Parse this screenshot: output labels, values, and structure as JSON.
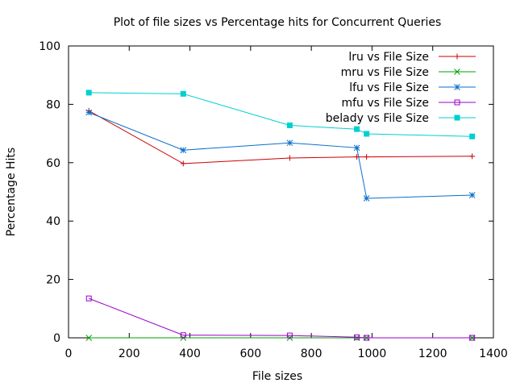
{
  "chart_data": {
    "type": "line",
    "title": "Plot of file sizes vs Percentage hits for Concurrent Queries",
    "xlabel": "File sizes",
    "ylabel": "Percentage Hits",
    "xlim": [
      0,
      1400
    ],
    "ylim": [
      0,
      100
    ],
    "xticks": [
      0,
      200,
      400,
      600,
      800,
      1000,
      1200,
      1400
    ],
    "yticks": [
      0,
      20,
      40,
      60,
      80,
      100
    ],
    "grid": false,
    "legend_position": "top-right",
    "series": [
      {
        "name": "lru vs File Size",
        "color": "#cc0000",
        "marker": "plus",
        "points": [
          [
            67,
            77.8
          ],
          [
            378,
            59.7
          ],
          [
            729,
            61.6
          ],
          [
            950,
            62.0
          ],
          [
            982,
            62.0
          ],
          [
            1330,
            62.2
          ]
        ]
      },
      {
        "name": "mru vs File Size",
        "color": "#00a000",
        "marker": "cross",
        "points": [
          [
            67,
            0.0
          ],
          [
            378,
            0.0
          ],
          [
            729,
            0.0
          ],
          [
            950,
            0.0
          ],
          [
            982,
            0.0
          ],
          [
            1330,
            0.0
          ]
        ]
      },
      {
        "name": "lfu vs File Size",
        "color": "#0a6fcc",
        "marker": "star",
        "points": [
          [
            67,
            77.2
          ],
          [
            378,
            64.3
          ],
          [
            729,
            66.8
          ],
          [
            950,
            65.1
          ],
          [
            982,
            47.8
          ],
          [
            1330,
            48.9
          ]
        ]
      },
      {
        "name": "mfu vs File Size",
        "color": "#9a00c8",
        "marker": "open-square",
        "points": [
          [
            67,
            13.5
          ],
          [
            378,
            0.9
          ],
          [
            729,
            0.8
          ],
          [
            950,
            0.2
          ],
          [
            982,
            0.0
          ],
          [
            1330,
            0.0
          ]
        ]
      },
      {
        "name": "belady vs File Size",
        "color": "#00d0d0",
        "marker": "filled-square",
        "points": [
          [
            67,
            84.0
          ],
          [
            378,
            83.6
          ],
          [
            729,
            72.8
          ],
          [
            950,
            71.5
          ],
          [
            982,
            69.9
          ],
          [
            1330,
            69.0
          ]
        ]
      }
    ]
  }
}
